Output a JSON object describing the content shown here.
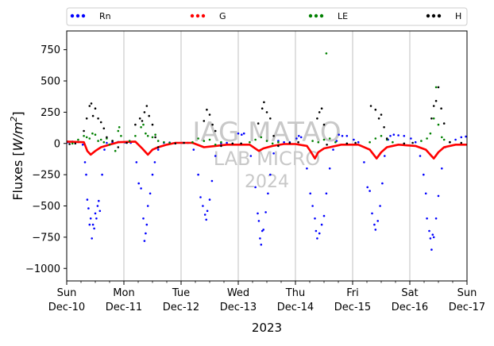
{
  "chart_data": {
    "type": "scatter",
    "title": "",
    "xlabel": "2023",
    "ylabel": "Fluxes [W/m²]",
    "ylabel_parts": {
      "base": "Fluxes [",
      "unit": "W/m",
      "sup": "2",
      "close": "]"
    },
    "ylim": [
      -1100,
      900
    ],
    "yticks": [
      750,
      500,
      250,
      0,
      -250,
      -500,
      -750,
      -1000
    ],
    "xlim_days": [
      0,
      7
    ],
    "xticks": [
      {
        "day": 0,
        "weekday": "Sun",
        "date": "Dec-10"
      },
      {
        "day": 1,
        "weekday": "Mon",
        "date": "Dec-11"
      },
      {
        "day": 2,
        "weekday": "Tue",
        "date": "Dec-12"
      },
      {
        "day": 3,
        "weekday": "Wed",
        "date": "Dec-13"
      },
      {
        "day": 4,
        "weekday": "Thu",
        "date": "Dec-14"
      },
      {
        "day": 5,
        "weekday": "Fri",
        "date": "Dec-15"
      },
      {
        "day": 6,
        "weekday": "Sat",
        "date": "Dec-16"
      },
      {
        "day": 7,
        "weekday": "Sun",
        "date": "Dec-17"
      }
    ],
    "grid": "vertical",
    "legend_position": "top",
    "watermark": [
      "IAG MATAO",
      "LAB MICRO",
      "2024"
    ],
    "series": [
      {
        "name": "Rn",
        "color": "#0000ff",
        "points": [
          [
            0.02,
            10
          ],
          [
            0.1,
            15
          ],
          [
            0.2,
            12
          ],
          [
            0.28,
            -10
          ],
          [
            0.32,
            -150
          ],
          [
            0.34,
            -250
          ],
          [
            0.36,
            -450
          ],
          [
            0.38,
            -520
          ],
          [
            0.4,
            -650
          ],
          [
            0.42,
            -600
          ],
          [
            0.44,
            -760
          ],
          [
            0.46,
            -650
          ],
          [
            0.48,
            -680
          ],
          [
            0.5,
            -560
          ],
          [
            0.52,
            -600
          ],
          [
            0.54,
            -500
          ],
          [
            0.56,
            -460
          ],
          [
            0.58,
            -540
          ],
          [
            0.62,
            -250
          ],
          [
            0.66,
            -50
          ],
          [
            0.7,
            5
          ],
          [
            0.8,
            10
          ],
          [
            0.9,
            12
          ],
          [
            1.02,
            8
          ],
          [
            1.12,
            5
          ],
          [
            1.22,
            -150
          ],
          [
            1.26,
            -320
          ],
          [
            1.3,
            -360
          ],
          [
            1.34,
            -600
          ],
          [
            1.36,
            -780
          ],
          [
            1.38,
            -720
          ],
          [
            1.4,
            -650
          ],
          [
            1.42,
            -500
          ],
          [
            1.46,
            -400
          ],
          [
            1.5,
            -250
          ],
          [
            1.54,
            -150
          ],
          [
            1.6,
            -50
          ],
          [
            1.7,
            5
          ],
          [
            1.8,
            8
          ],
          [
            2.02,
            5
          ],
          [
            2.12,
            5
          ],
          [
            2.22,
            -50
          ],
          [
            2.3,
            -250
          ],
          [
            2.34,
            -430
          ],
          [
            2.38,
            -500
          ],
          [
            2.42,
            -570
          ],
          [
            2.44,
            -610
          ],
          [
            2.46,
            -540
          ],
          [
            2.5,
            -450
          ],
          [
            2.54,
            -300
          ],
          [
            2.6,
            -100
          ],
          [
            2.7,
            0
          ],
          [
            2.8,
            5
          ],
          [
            3.0,
            80
          ],
          [
            3.06,
            70
          ],
          [
            3.1,
            80
          ],
          [
            3.22,
            -100
          ],
          [
            3.3,
            -350
          ],
          [
            3.34,
            -560
          ],
          [
            3.36,
            -620
          ],
          [
            3.38,
            -760
          ],
          [
            3.4,
            -810
          ],
          [
            3.42,
            -700
          ],
          [
            3.44,
            -690
          ],
          [
            3.48,
            -550
          ],
          [
            3.52,
            -400
          ],
          [
            3.56,
            -250
          ],
          [
            3.62,
            -80
          ],
          [
            3.7,
            20
          ],
          [
            3.8,
            10
          ],
          [
            3.9,
            10
          ],
          [
            4.02,
            40
          ],
          [
            4.06,
            60
          ],
          [
            4.1,
            50
          ],
          [
            4.2,
            -200
          ],
          [
            4.26,
            -400
          ],
          [
            4.3,
            -500
          ],
          [
            4.34,
            -600
          ],
          [
            4.36,
            -700
          ],
          [
            4.38,
            -760
          ],
          [
            4.42,
            -720
          ],
          [
            4.46,
            -650
          ],
          [
            4.5,
            -580
          ],
          [
            4.54,
            -400
          ],
          [
            4.6,
            -200
          ],
          [
            4.66,
            -50
          ],
          [
            4.72,
            20
          ],
          [
            4.76,
            70
          ],
          [
            4.82,
            60
          ],
          [
            4.9,
            60
          ],
          [
            5.02,
            30
          ],
          [
            5.1,
            10
          ],
          [
            5.2,
            -150
          ],
          [
            5.26,
            -350
          ],
          [
            5.3,
            -380
          ],
          [
            5.34,
            -560
          ],
          [
            5.38,
            -650
          ],
          [
            5.4,
            -690
          ],
          [
            5.44,
            -620
          ],
          [
            5.48,
            -500
          ],
          [
            5.52,
            -320
          ],
          [
            5.56,
            -100
          ],
          [
            5.62,
            30
          ],
          [
            5.66,
            60
          ],
          [
            5.72,
            70
          ],
          [
            5.8,
            65
          ],
          [
            5.9,
            60
          ],
          [
            6.02,
            40
          ],
          [
            6.1,
            10
          ],
          [
            6.18,
            -100
          ],
          [
            6.24,
            -250
          ],
          [
            6.28,
            -400
          ],
          [
            6.3,
            -600
          ],
          [
            6.34,
            -700
          ],
          [
            6.36,
            -760
          ],
          [
            6.38,
            -850
          ],
          [
            6.4,
            -730
          ],
          [
            6.42,
            -750
          ],
          [
            6.46,
            -600
          ],
          [
            6.5,
            -420
          ],
          [
            6.56,
            -200
          ],
          [
            6.62,
            -30
          ],
          [
            6.7,
            10
          ],
          [
            6.8,
            30
          ],
          [
            6.9,
            50
          ],
          [
            6.98,
            55
          ]
        ]
      },
      {
        "name": "G",
        "color": "#ff0000",
        "lines": [
          [
            [
              0.0,
              15
            ],
            [
              0.3,
              10
            ],
            [
              0.36,
              -60
            ],
            [
              0.42,
              -90
            ],
            [
              0.5,
              -60
            ],
            [
              0.6,
              -30
            ],
            [
              0.75,
              -10
            ],
            [
              0.9,
              10
            ],
            [
              1.2,
              15
            ],
            [
              1.32,
              -40
            ],
            [
              1.42,
              -90
            ],
            [
              1.5,
              -50
            ],
            [
              1.6,
              -30
            ],
            [
              1.75,
              -10
            ],
            [
              1.9,
              5
            ],
            [
              2.2,
              5
            ],
            [
              2.4,
              -30
            ],
            [
              2.6,
              -20
            ],
            [
              2.8,
              -10
            ],
            [
              3.2,
              -10
            ],
            [
              3.36,
              -60
            ],
            [
              3.44,
              -40
            ],
            [
              3.6,
              -20
            ],
            [
              3.8,
              -5
            ],
            [
              4.0,
              -5
            ],
            [
              4.2,
              -20
            ],
            [
              4.26,
              -60
            ],
            [
              4.34,
              -120
            ],
            [
              4.4,
              -70
            ],
            [
              4.5,
              -40
            ],
            [
              4.6,
              -30
            ],
            [
              4.8,
              -10
            ],
            [
              5.1,
              -10
            ],
            [
              5.3,
              -50
            ],
            [
              5.42,
              -120
            ],
            [
              5.5,
              -70
            ],
            [
              5.6,
              -30
            ],
            [
              5.8,
              -10
            ],
            [
              6.1,
              -20
            ],
            [
              6.28,
              -50
            ],
            [
              6.42,
              -120
            ],
            [
              6.5,
              -70
            ],
            [
              6.6,
              -30
            ],
            [
              6.8,
              -10
            ],
            [
              7.0,
              -10
            ]
          ]
        ]
      },
      {
        "name": "LE",
        "color": "#008000",
        "points": [
          [
            0.1,
            0
          ],
          [
            0.2,
            30
          ],
          [
            0.3,
            60
          ],
          [
            0.35,
            50
          ],
          [
            0.4,
            40
          ],
          [
            0.45,
            80
          ],
          [
            0.5,
            70
          ],
          [
            0.55,
            20
          ],
          [
            0.6,
            30
          ],
          [
            0.65,
            10
          ],
          [
            0.7,
            40
          ],
          [
            0.75,
            -10
          ],
          [
            0.8,
            20
          ],
          [
            0.85,
            -60
          ],
          [
            0.9,
            100
          ],
          [
            0.92,
            130
          ],
          [
            0.95,
            60
          ],
          [
            1.1,
            20
          ],
          [
            1.2,
            60
          ],
          [
            1.3,
            130
          ],
          [
            1.34,
            150
          ],
          [
            1.38,
            80
          ],
          [
            1.42,
            60
          ],
          [
            1.5,
            50
          ],
          [
            1.55,
            70
          ],
          [
            1.6,
            20
          ],
          [
            1.7,
            10
          ],
          [
            1.8,
            5
          ],
          [
            2.2,
            10
          ],
          [
            2.3,
            40
          ],
          [
            2.4,
            20
          ],
          [
            2.5,
            30
          ],
          [
            2.6,
            -10
          ],
          [
            2.7,
            10
          ],
          [
            3.2,
            10
          ],
          [
            3.3,
            30
          ],
          [
            3.4,
            50
          ],
          [
            3.5,
            20
          ],
          [
            3.6,
            0
          ],
          [
            3.7,
            10
          ],
          [
            4.3,
            20
          ],
          [
            4.4,
            10
          ],
          [
            4.5,
            30
          ],
          [
            4.54,
            720
          ],
          [
            4.6,
            40
          ],
          [
            4.7,
            10
          ],
          [
            5.3,
            10
          ],
          [
            5.4,
            40
          ],
          [
            5.5,
            60
          ],
          [
            5.6,
            30
          ],
          [
            5.7,
            10
          ],
          [
            6.2,
            20
          ],
          [
            6.3,
            40
          ],
          [
            6.36,
            80
          ],
          [
            6.42,
            200
          ],
          [
            6.46,
            450
          ],
          [
            6.5,
            150
          ],
          [
            6.56,
            50
          ],
          [
            6.6,
            30
          ],
          [
            6.7,
            10
          ]
        ]
      },
      {
        "name": "H",
        "color": "#000000",
        "points": [
          [
            0.3,
            100
          ],
          [
            0.35,
            200
          ],
          [
            0.4,
            300
          ],
          [
            0.43,
            320
          ],
          [
            0.46,
            220
          ],
          [
            0.5,
            280
          ],
          [
            0.55,
            200
          ],
          [
            0.6,
            170
          ],
          [
            0.65,
            120
          ],
          [
            0.7,
            50
          ],
          [
            0.8,
            20
          ],
          [
            0.9,
            -30
          ],
          [
            1.2,
            150
          ],
          [
            1.28,
            200
          ],
          [
            1.32,
            180
          ],
          [
            1.36,
            250
          ],
          [
            1.4,
            300
          ],
          [
            1.44,
            220
          ],
          [
            1.5,
            150
          ],
          [
            1.55,
            50
          ],
          [
            1.6,
            -30
          ],
          [
            2.4,
            180
          ],
          [
            2.45,
            270
          ],
          [
            2.5,
            230
          ],
          [
            2.55,
            150
          ],
          [
            2.6,
            100
          ],
          [
            2.7,
            -20
          ],
          [
            3.35,
            160
          ],
          [
            3.42,
            280
          ],
          [
            3.45,
            330
          ],
          [
            3.5,
            250
          ],
          [
            3.56,
            200
          ],
          [
            3.62,
            60
          ],
          [
            3.7,
            -20
          ],
          [
            4.38,
            200
          ],
          [
            4.42,
            250
          ],
          [
            4.46,
            280
          ],
          [
            4.5,
            150
          ],
          [
            4.55,
            -10
          ],
          [
            5.32,
            300
          ],
          [
            5.4,
            270
          ],
          [
            5.46,
            200
          ],
          [
            5.5,
            230
          ],
          [
            5.55,
            130
          ],
          [
            5.6,
            40
          ],
          [
            6.38,
            200
          ],
          [
            6.42,
            300
          ],
          [
            6.46,
            340
          ],
          [
            6.5,
            450
          ],
          [
            6.55,
            280
          ],
          [
            6.6,
            160
          ],
          [
            6.7,
            10
          ],
          [
            0.05,
            -5
          ],
          [
            0.15,
            0
          ],
          [
            1.05,
            5
          ],
          [
            1.9,
            0
          ],
          [
            2.05,
            5
          ],
          [
            2.9,
            0
          ],
          [
            3.05,
            0
          ],
          [
            3.9,
            5
          ],
          [
            4.05,
            10
          ],
          [
            4.9,
            0
          ],
          [
            5.05,
            5
          ],
          [
            5.9,
            0
          ],
          [
            6.05,
            5
          ],
          [
            6.9,
            5
          ]
        ]
      }
    ]
  }
}
